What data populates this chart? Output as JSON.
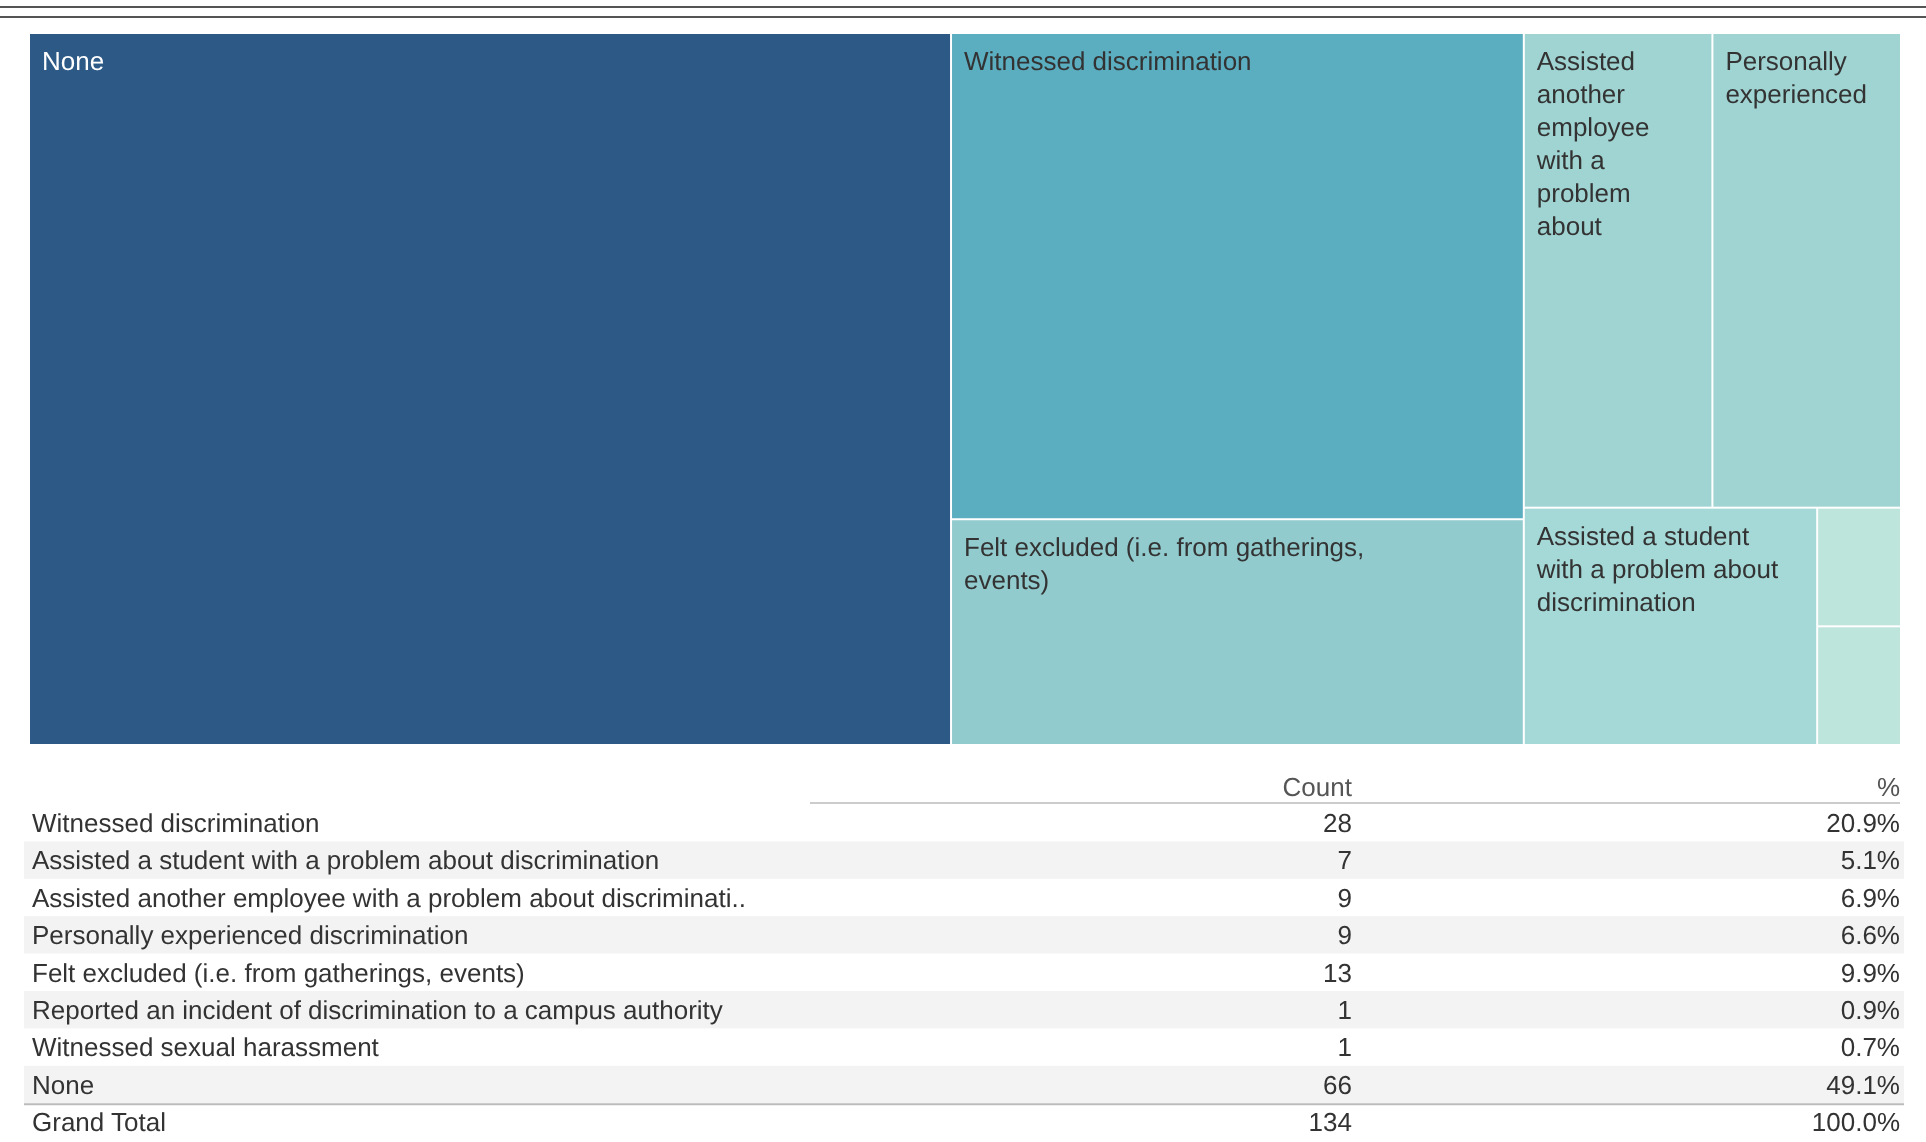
{
  "chart_data": {
    "type": "other",
    "categories": [
      "Witnessed discrimination",
      "Assisted a student with a problem about discrimination",
      "Assisted another employee with a problem about discriminati..",
      "Personally experienced discrimination",
      "Felt excluded (i.e. from gatherings, events)",
      "Reported an incident of discrimination to a campus authority",
      "Witnessed sexual harassment",
      "None"
    ],
    "colors": [
      "#5badc0",
      "#a5d9d7",
      "#9fd4d2",
      "#a0d4d3",
      "#92cbce",
      "#bde5dc",
      "#bde5dc",
      "#2d5986"
    ],
    "series": [
      {
        "name": "Count",
        "values": [
          28,
          7,
          9,
          9,
          13,
          1,
          1,
          66
        ]
      },
      {
        "name": "%",
        "values": [
          20.9,
          5.1,
          6.9,
          6.6,
          9.9,
          0.9,
          0.7,
          49.1
        ],
        "value_labels": [
          "20.9%",
          "5.1%",
          "6.9%",
          "6.6%",
          "9.9%",
          "0.9%",
          "0.7%",
          "49.1%"
        ]
      }
    ],
    "annotations": [
      "Grand Total",
      {
        "text": "None",
        "x": "None"
      },
      {
        "text": "Witnessed discrimination",
        "x": "Witnessed discrimination"
      },
      {
        "text": "Felt excluded (i.e. from gatherings, events)",
        "x": "Felt excluded (i.e. from gatherings, events)"
      },
      {
        "text": "Assisted another employee with a problem about",
        "x": "Assisted another employee with a problem about discriminati.."
      },
      {
        "text": "Personally experienced",
        "x": "Personally experienced discrimination"
      },
      {
        "text": "Assisted a student with a problem about discrimination",
        "x": "Assisted a student with a problem about discrimination"
      }
    ],
    "data_labels": true,
    "totals": [
      "134",
      "100.0%"
    ],
    "legend": false
  }
}
